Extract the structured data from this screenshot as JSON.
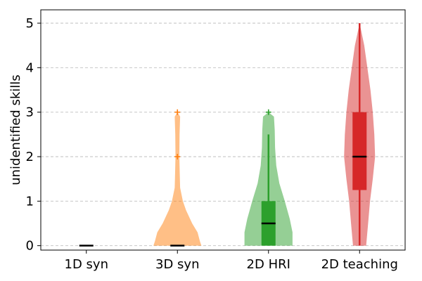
{
  "chart_data": {
    "type": "violin",
    "ylabel": "unidentified skills",
    "xlabel": "",
    "ylim": [
      -0.1,
      5.3
    ],
    "yticks": [
      0,
      1,
      2,
      3,
      4,
      5
    ],
    "grid": "horizontal dashed",
    "categories": [
      "1D syn",
      "3D syn",
      "2D HRI",
      "2D teaching"
    ],
    "series": [
      {
        "category": "1D syn",
        "color": "#1f77b4",
        "min": 0,
        "q1": 0,
        "median": 0,
        "q3": 0,
        "whisker_low": 0,
        "whisker_high": 0,
        "outliers": [],
        "density": [
          [
            0,
            0
          ]
        ]
      },
      {
        "category": "3D syn",
        "color": "#ff7f0e",
        "min": 0,
        "q1": 0,
        "median": 0,
        "q3": 0,
        "whisker_low": 0,
        "whisker_high": 0,
        "outliers": [
          2,
          3
        ],
        "density": [
          [
            0,
            0.62
          ],
          [
            0.1,
            0.58
          ],
          [
            0.3,
            0.52
          ],
          [
            0.5,
            0.38
          ],
          [
            0.8,
            0.22
          ],
          [
            1.0,
            0.14
          ],
          [
            1.3,
            0.07
          ],
          [
            1.6,
            0.06
          ],
          [
            2.0,
            0.05
          ],
          [
            2.5,
            0.055
          ],
          [
            2.9,
            0.07
          ],
          [
            3.0,
            0.0
          ]
        ]
      },
      {
        "category": "2D HRI",
        "color": "#2ca02c",
        "min": 0,
        "q1": 0,
        "median": 0.5,
        "q3": 1,
        "whisker_low": 0,
        "whisker_high": 2.5,
        "outliers": [
          3
        ],
        "density": [
          [
            0,
            0.62
          ],
          [
            0.3,
            0.62
          ],
          [
            0.6,
            0.55
          ],
          [
            1.0,
            0.42
          ],
          [
            1.4,
            0.28
          ],
          [
            1.8,
            0.2
          ],
          [
            2.2,
            0.17
          ],
          [
            2.6,
            0.16
          ],
          [
            2.9,
            0.14
          ],
          [
            3.0,
            0.0
          ]
        ]
      },
      {
        "category": "2D teaching",
        "color": "#d62728",
        "min": 0,
        "q1": 1.25,
        "median": 2,
        "q3": 3,
        "whisker_low": 0,
        "whisker_high": 5,
        "outliers": [],
        "density": [
          [
            0,
            0.17
          ],
          [
            0.5,
            0.22
          ],
          [
            1.0,
            0.27
          ],
          [
            1.5,
            0.34
          ],
          [
            2.0,
            0.4
          ],
          [
            2.5,
            0.38
          ],
          [
            3.0,
            0.34
          ],
          [
            3.5,
            0.28
          ],
          [
            4.0,
            0.2
          ],
          [
            4.5,
            0.12
          ],
          [
            5.0,
            0.0
          ]
        ]
      }
    ]
  }
}
